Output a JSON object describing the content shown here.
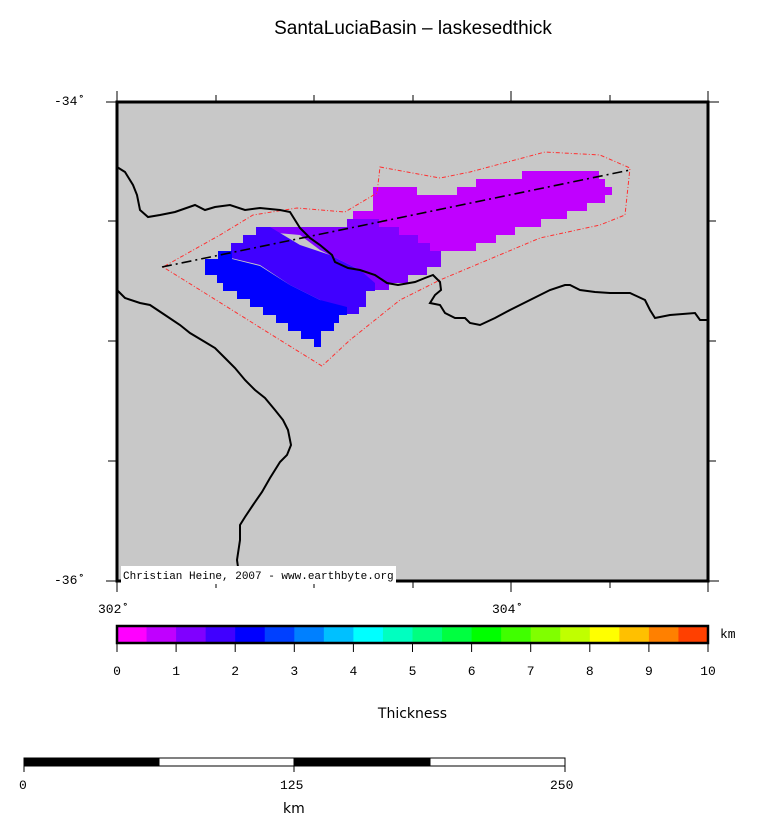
{
  "title": "SantaLuciaBasin – laskesedthick",
  "map": {
    "lon_range": [
      302,
      305
    ],
    "lat_range": [
      -36,
      -34
    ],
    "lat_labels": [
      "-34˚",
      "-36˚"
    ],
    "lon_labels": [
      "302˚",
      "304˚"
    ],
    "background_color": "#c8c8c8",
    "credit": "Christian Heine, 2007 - www.earthbyte.org",
    "grid_colors": [
      "#c000ff",
      "#8000ff",
      "#4000ff",
      "#0000ff"
    ],
    "outline_color": "#ff3030"
  },
  "colorbar": {
    "label": "Thickness",
    "unit": "km",
    "range": [
      0,
      10
    ],
    "ticks": [
      "0",
      "1",
      "2",
      "3",
      "4",
      "5",
      "6",
      "7",
      "8",
      "9",
      "10"
    ],
    "colors": [
      "#ff00ff",
      "#c000ff",
      "#8000ff",
      "#4000ff",
      "#0000ff",
      "#0040ff",
      "#0080ff",
      "#00c0ff",
      "#00ffff",
      "#00ffc0",
      "#00ff80",
      "#00ff40",
      "#00ff00",
      "#40ff00",
      "#80ff00",
      "#c0ff00",
      "#ffff00",
      "#ffc000",
      "#ff8000",
      "#ff4000"
    ]
  },
  "scalebar": {
    "labels": [
      "0",
      "125",
      "250"
    ],
    "unit": "km"
  }
}
